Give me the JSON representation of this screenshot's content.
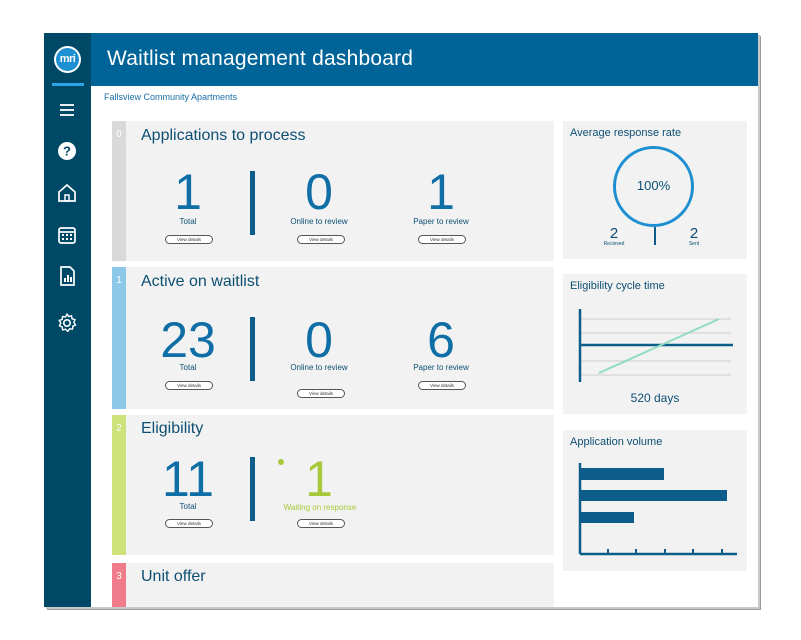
{
  "app": {
    "logo_text": "mri",
    "title": "Waitlist management dashboard",
    "breadcrumb": "Fallsview Community Apartments"
  },
  "sidebar": {
    "icons": [
      "menu-icon",
      "help-icon",
      "home-icon",
      "calendar-icon",
      "report-icon",
      "settings-icon"
    ]
  },
  "cards": {
    "applications": {
      "step": "0",
      "title": "Applications to process",
      "total": "1",
      "total_label": "Total",
      "online": "0",
      "online_label": "Online to review",
      "paper": "1",
      "paper_label": "Paper to review",
      "btn": "View details",
      "color": "#d9d9d9"
    },
    "active": {
      "step": "1",
      "title": "Active on waitlist",
      "total": "23",
      "total_label": "Total",
      "online": "0",
      "online_label": "Online to review",
      "paper": "6",
      "paper_label": "Paper to review",
      "btn": "View details",
      "color": "#8ec8e8"
    },
    "eligibility": {
      "step": "2",
      "title": "Eligibility",
      "total": "11",
      "total_label": "Total",
      "waiting": "1",
      "waiting_label": "Waiting on response",
      "btn": "View details",
      "color": "#cde27a"
    },
    "unit_offer": {
      "step": "3",
      "title": "Unit offer",
      "color": "#f07b8a"
    }
  },
  "response_rate": {
    "title": "Average response rate",
    "percent": "100%",
    "received": "2",
    "received_label": "Recieved",
    "sent": "2",
    "sent_label": "Sent"
  },
  "cycle_time": {
    "title": "Eligibility cycle time",
    "value": "520 days"
  },
  "volume": {
    "title": "Application volume"
  },
  "colors": {
    "primary": "#006498",
    "sidebar": "#004966",
    "accent": "#1e8fd1",
    "green": "#a8c83c"
  }
}
